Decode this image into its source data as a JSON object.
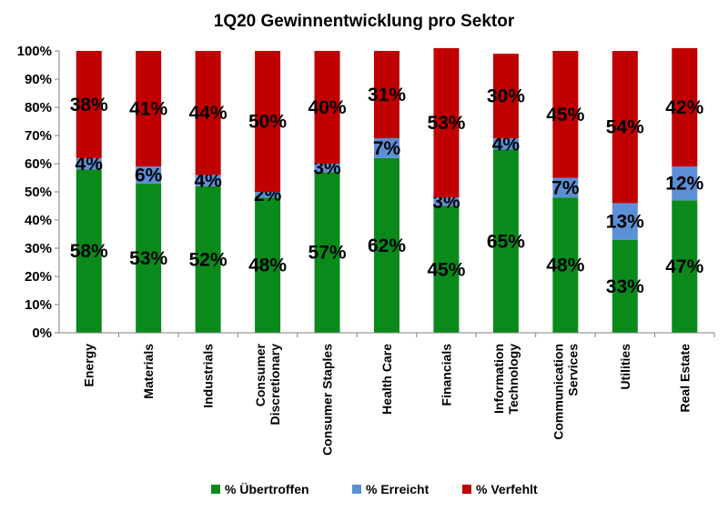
{
  "chart_data": {
    "type": "bar",
    "stacked": true,
    "title": "1Q20 Gewinnentwicklung pro Sektor",
    "categories": [
      [
        "Energy"
      ],
      [
        "Materials"
      ],
      [
        "Industrials"
      ],
      [
        "Consumer",
        "Discretionary"
      ],
      [
        "Consumer Staples"
      ],
      [
        "Health Care"
      ],
      [
        "Financials"
      ],
      [
        "Information",
        "Technology"
      ],
      [
        "Communication",
        "Services"
      ],
      [
        "Utilities"
      ],
      [
        "Real Estate"
      ]
    ],
    "series": [
      {
        "name": "% Übertroffen",
        "color": "#0a8a1b",
        "values": [
          58,
          53,
          52,
          48,
          57,
          62,
          45,
          65,
          48,
          33,
          47
        ]
      },
      {
        "name": "% Erreicht",
        "color": "#5b8fd6",
        "values": [
          4,
          6,
          4,
          2,
          3,
          7,
          3,
          4,
          7,
          13,
          12
        ]
      },
      {
        "name": "% Verfehlt",
        "color": "#c00000",
        "values": [
          38,
          41,
          44,
          50,
          40,
          31,
          53,
          30,
          45,
          54,
          42
        ]
      }
    ],
    "ylim": [
      0,
      100
    ],
    "yticks": [
      "0%",
      "10%",
      "20%",
      "30%",
      "40%",
      "50%",
      "60%",
      "70%",
      "80%",
      "90%",
      "100%"
    ],
    "grid": false,
    "legend_position": "bottom"
  }
}
